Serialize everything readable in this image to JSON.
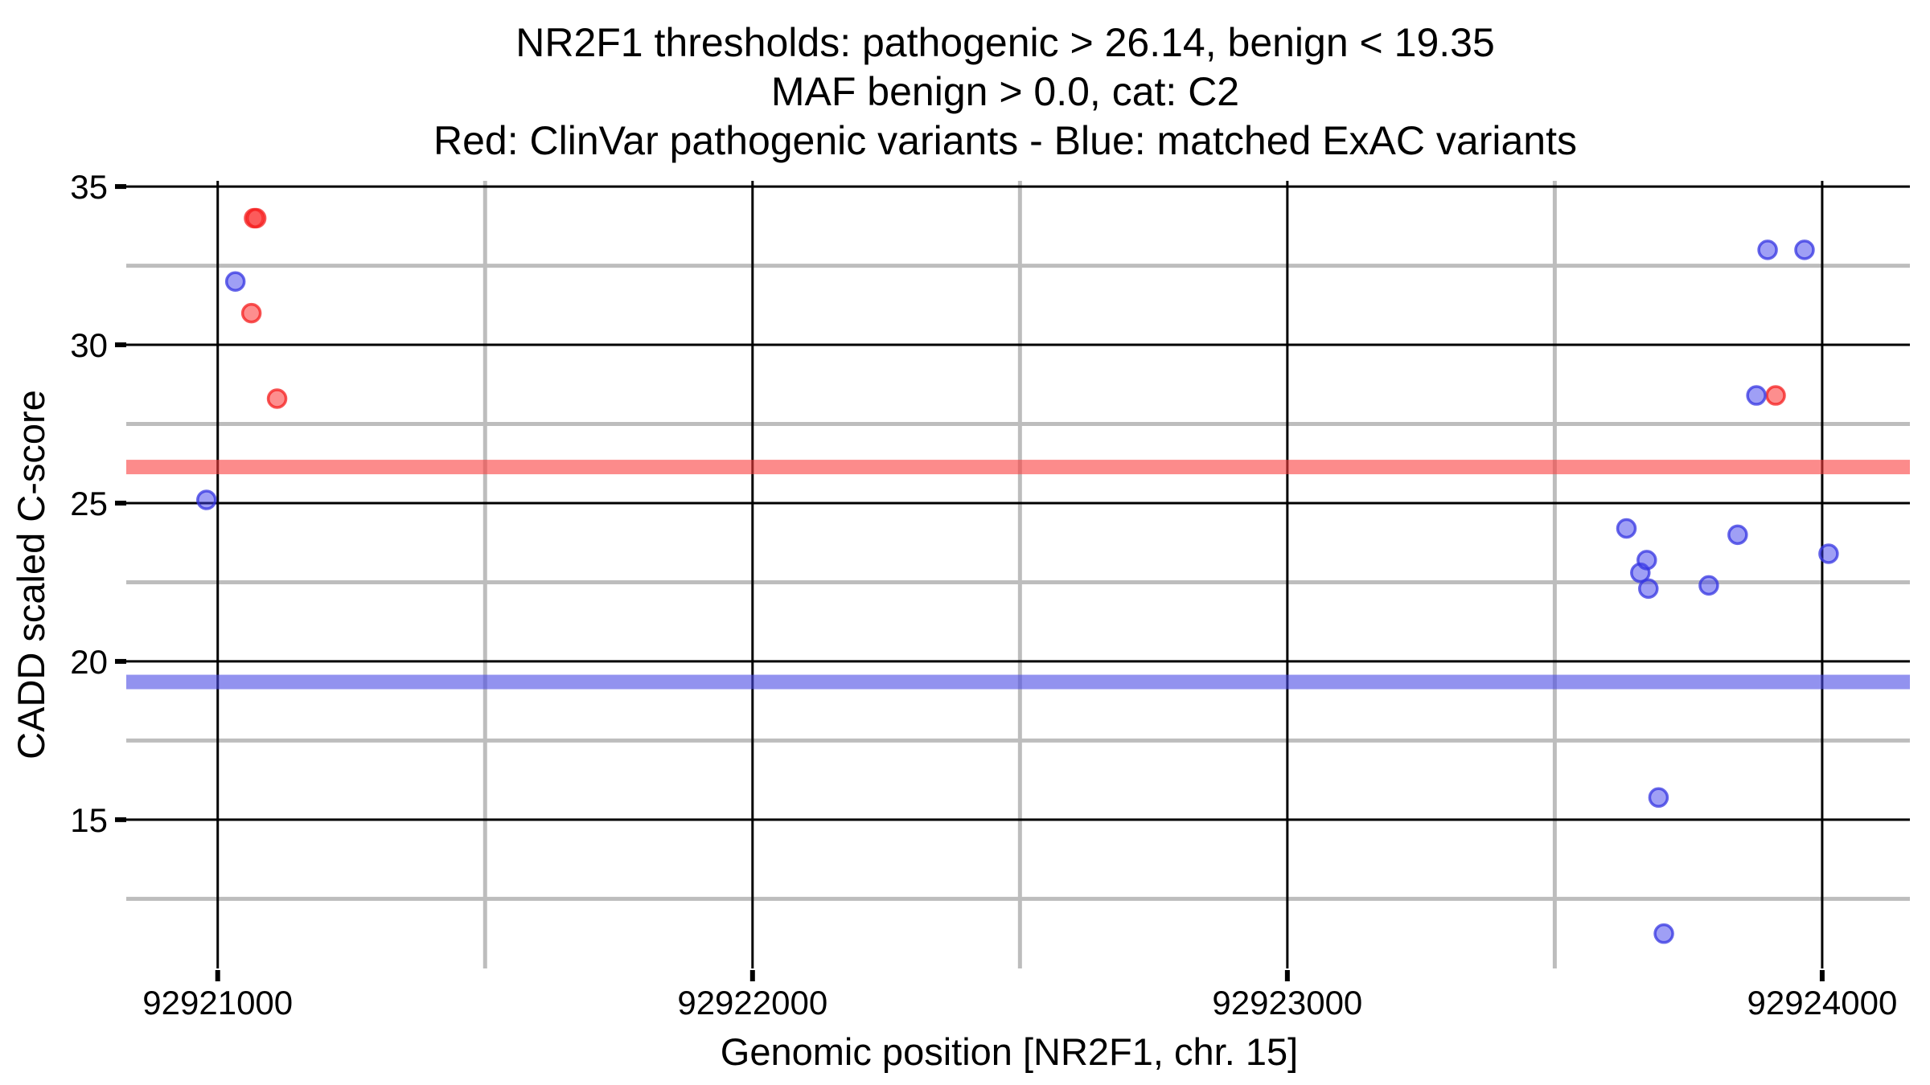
{
  "page": {
    "background": "#ffffff"
  },
  "chart_data": {
    "type": "scatter",
    "title_lines": [
      "NR2F1 thresholds: pathogenic > 26.14, benign < 19.35",
      "MAF benign > 0.0, cat: C2",
      "Red: ClinVar pathogenic variants - Blue: matched ExAC variants"
    ],
    "xlabel": "Genomic position [NR2F1, chr. 15]",
    "ylabel": "CADD scaled C-score",
    "gene": "NR2F1",
    "chromosome": "chr. 15",
    "category": "C2",
    "maf_benign": "0.0",
    "xlim": [
      92920829,
      92924164
    ],
    "ylim": [
      10.3,
      35.18
    ],
    "x_major_ticks": [
      92921000,
      92922000,
      92923000,
      92924000
    ],
    "x_tick_labels": [
      "92921000",
      "92922000",
      "92923000",
      "92924000"
    ],
    "x_minor_ticks": [
      92921500,
      92922500,
      92923500
    ],
    "y_major_ticks": [
      15,
      20,
      25,
      30,
      35
    ],
    "y_tick_labels": [
      "15",
      "20",
      "25",
      "30",
      "35"
    ],
    "y_minor_ticks": [
      12.5,
      17.5,
      22.5,
      27.5,
      32.5
    ],
    "grid": {
      "major_on": true,
      "minor_on": true,
      "legend": "none"
    },
    "thresholds": [
      {
        "name": "pathogenic",
        "comparator": ">",
        "value": 26.14,
        "band_color": "rgba(250,62,62,0.6)"
      },
      {
        "name": "benign",
        "comparator": "<",
        "value": 19.35,
        "band_color": "rgba(74,74,228,0.6)"
      }
    ],
    "series": [
      {
        "name": "ClinVar pathogenic variants",
        "color": "#f83c3c",
        "fill": "rgba(252,50,50,0.55)",
        "stroke": "rgba(244,30,30,0.75)",
        "points": [
          {
            "x": 92921068,
            "y": 34.0
          },
          {
            "x": 92921072,
            "y": 34.0
          },
          {
            "x": 92921063,
            "y": 31.0
          },
          {
            "x": 92921111,
            "y": 28.3
          },
          {
            "x": 92923913,
            "y": 28.4
          }
        ]
      },
      {
        "name": "matched ExAC variants",
        "color": "#4a4ae8",
        "fill": "rgba(64,64,235,0.5)",
        "stroke": "rgba(52,52,226,0.75)",
        "points": [
          {
            "x": 92920979,
            "y": 25.1
          },
          {
            "x": 92921033,
            "y": 32.0
          },
          {
            "x": 92923634,
            "y": 24.2
          },
          {
            "x": 92923660,
            "y": 22.8
          },
          {
            "x": 92923672,
            "y": 23.2
          },
          {
            "x": 92923675,
            "y": 22.3
          },
          {
            "x": 92923694,
            "y": 15.7
          },
          {
            "x": 92923704,
            "y": 11.4
          },
          {
            "x": 92923788,
            "y": 22.4
          },
          {
            "x": 92923842,
            "y": 24.0
          },
          {
            "x": 92923877,
            "y": 28.4
          },
          {
            "x": 92923898,
            "y": 33.0
          },
          {
            "x": 92923967,
            "y": 33.0
          },
          {
            "x": 92924012,
            "y": 23.4
          }
        ]
      }
    ],
    "colors": {
      "grid_major": "#000000",
      "grid_minor": "#bdbdbd",
      "tick": "#000000",
      "text": "#000000"
    }
  }
}
